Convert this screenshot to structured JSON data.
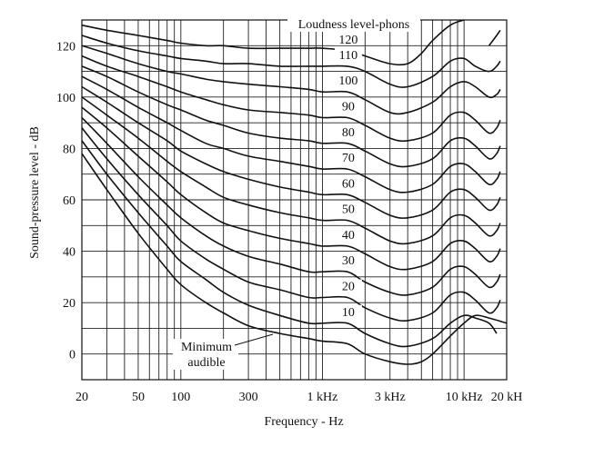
{
  "chart_data": {
    "type": "line",
    "title": "",
    "xlabel": "Frequency - Hz",
    "ylabel": "Sound-pressure level - dB",
    "x_scale": "log",
    "xlim": [
      20,
      20000
    ],
    "ylim": [
      -10,
      130
    ],
    "grid": true,
    "x_tick_labels": [
      {
        "value": 20,
        "label": "20"
      },
      {
        "value": 50,
        "label": "50"
      },
      {
        "value": 100,
        "label": "100"
      },
      {
        "value": 300,
        "label": "300"
      },
      {
        "value": 1000,
        "label": "1 kHz"
      },
      {
        "value": 3000,
        "label": "3 kHz"
      },
      {
        "value": 10000,
        "label": "10 kHz"
      },
      {
        "value": 20000,
        "label": "20 kH"
      }
    ],
    "y_tick_labels": [
      {
        "value": 0,
        "label": "0"
      },
      {
        "value": 20,
        "label": "20"
      },
      {
        "value": 40,
        "label": "40"
      },
      {
        "value": 60,
        "label": "60"
      },
      {
        "value": 80,
        "label": "80"
      },
      {
        "value": 100,
        "label": "100"
      },
      {
        "value": 120,
        "label": "120"
      }
    ],
    "legend_title": "Loudness level-phons",
    "annotation_minimum": "Minimum",
    "annotation_audible": "audible",
    "series": [
      {
        "label": "",
        "points": [
          [
            20,
            78
          ],
          [
            30,
            64
          ],
          [
            50,
            47
          ],
          [
            80,
            33
          ],
          [
            100,
            27
          ],
          [
            150,
            20
          ],
          [
            200,
            16
          ],
          [
            300,
            11
          ],
          [
            500,
            8
          ],
          [
            800,
            6
          ],
          [
            1000,
            5
          ],
          [
            1500,
            4
          ],
          [
            2000,
            0
          ],
          [
            3000,
            -3
          ],
          [
            4000,
            -4
          ],
          [
            5000,
            -3
          ],
          [
            6000,
            0
          ],
          [
            8000,
            7
          ],
          [
            10000,
            12
          ],
          [
            12000,
            15
          ],
          [
            15000,
            14
          ],
          [
            20000,
            12
          ]
        ]
      },
      {
        "label": "10",
        "points": [
          [
            20,
            83
          ],
          [
            30,
            70
          ],
          [
            50,
            55
          ],
          [
            80,
            42
          ],
          [
            100,
            36
          ],
          [
            150,
            29
          ],
          [
            200,
            24
          ],
          [
            300,
            19
          ],
          [
            500,
            15
          ],
          [
            800,
            12
          ],
          [
            1000,
            12
          ],
          [
            1500,
            12
          ],
          [
            2000,
            8
          ],
          [
            3000,
            4
          ],
          [
            4000,
            3
          ],
          [
            6000,
            6
          ],
          [
            8000,
            12
          ],
          [
            10000,
            15
          ],
          [
            12000,
            14
          ],
          [
            15000,
            12
          ],
          [
            17000,
            8
          ]
        ]
      },
      {
        "label": "20",
        "points": [
          [
            20,
            88
          ],
          [
            30,
            76
          ],
          [
            50,
            62
          ],
          [
            80,
            50
          ],
          [
            100,
            44
          ],
          [
            150,
            37
          ],
          [
            200,
            33
          ],
          [
            300,
            28
          ],
          [
            500,
            25
          ],
          [
            800,
            22
          ],
          [
            1000,
            22
          ],
          [
            1500,
            22
          ],
          [
            2000,
            18
          ],
          [
            3000,
            14
          ],
          [
            4000,
            13
          ],
          [
            6000,
            16
          ],
          [
            8000,
            23
          ],
          [
            10000,
            24
          ],
          [
            12000,
            21
          ],
          [
            15000,
            16
          ],
          [
            17000,
            18
          ],
          [
            18000,
            21
          ]
        ]
      },
      {
        "label": "30",
        "points": [
          [
            20,
            92
          ],
          [
            30,
            82
          ],
          [
            50,
            69
          ],
          [
            80,
            58
          ],
          [
            100,
            53
          ],
          [
            150,
            46
          ],
          [
            200,
            42
          ],
          [
            300,
            38
          ],
          [
            500,
            35
          ],
          [
            800,
            32
          ],
          [
            1000,
            32
          ],
          [
            1500,
            32
          ],
          [
            2000,
            28
          ],
          [
            3000,
            24
          ],
          [
            4000,
            23
          ],
          [
            6000,
            26
          ],
          [
            8000,
            33
          ],
          [
            10000,
            34
          ],
          [
            12000,
            31
          ],
          [
            15000,
            26
          ],
          [
            17000,
            28
          ],
          [
            18000,
            31
          ]
        ]
      },
      {
        "label": "40",
        "points": [
          [
            20,
            96
          ],
          [
            30,
            88
          ],
          [
            50,
            77
          ],
          [
            80,
            67
          ],
          [
            100,
            62
          ],
          [
            150,
            55
          ],
          [
            200,
            51
          ],
          [
            300,
            48
          ],
          [
            500,
            45
          ],
          [
            800,
            43
          ],
          [
            1000,
            42
          ],
          [
            1500,
            42
          ],
          [
            2000,
            39
          ],
          [
            3000,
            34
          ],
          [
            4000,
            33
          ],
          [
            6000,
            36
          ],
          [
            8000,
            43
          ],
          [
            10000,
            44
          ],
          [
            12000,
            41
          ],
          [
            15000,
            36
          ],
          [
            17000,
            38
          ],
          [
            18000,
            41
          ]
        ]
      },
      {
        "label": "50",
        "points": [
          [
            20,
            100
          ],
          [
            30,
            93
          ],
          [
            50,
            84
          ],
          [
            80,
            75
          ],
          [
            100,
            71
          ],
          [
            150,
            65
          ],
          [
            200,
            61
          ],
          [
            300,
            58
          ],
          [
            500,
            55
          ],
          [
            800,
            53
          ],
          [
            1000,
            52
          ],
          [
            1500,
            52
          ],
          [
            2000,
            49
          ],
          [
            3000,
            44
          ],
          [
            4000,
            43
          ],
          [
            6000,
            46
          ],
          [
            8000,
            53
          ],
          [
            10000,
            54
          ],
          [
            12000,
            51
          ],
          [
            15000,
            46
          ],
          [
            17000,
            48
          ],
          [
            18000,
            51
          ]
        ]
      },
      {
        "label": "60",
        "points": [
          [
            20,
            104
          ],
          [
            30,
            98
          ],
          [
            50,
            90
          ],
          [
            80,
            83
          ],
          [
            100,
            79
          ],
          [
            150,
            74
          ],
          [
            200,
            71
          ],
          [
            300,
            68
          ],
          [
            500,
            65
          ],
          [
            800,
            63
          ],
          [
            1000,
            62
          ],
          [
            1500,
            62
          ],
          [
            2000,
            59
          ],
          [
            3000,
            54
          ],
          [
            4000,
            53
          ],
          [
            6000,
            56
          ],
          [
            8000,
            63
          ],
          [
            10000,
            64
          ],
          [
            12000,
            61
          ],
          [
            15000,
            56
          ],
          [
            17000,
            58
          ],
          [
            18000,
            61
          ]
        ]
      },
      {
        "label": "70",
        "points": [
          [
            20,
            108
          ],
          [
            30,
            103
          ],
          [
            50,
            96
          ],
          [
            80,
            90
          ],
          [
            100,
            87
          ],
          [
            150,
            82
          ],
          [
            200,
            80
          ],
          [
            300,
            77
          ],
          [
            500,
            75
          ],
          [
            800,
            73
          ],
          [
            1000,
            72
          ],
          [
            1500,
            72
          ],
          [
            2000,
            69
          ],
          [
            3000,
            64
          ],
          [
            4000,
            63
          ],
          [
            6000,
            66
          ],
          [
            8000,
            73
          ],
          [
            10000,
            74
          ],
          [
            12000,
            71
          ],
          [
            15000,
            66
          ],
          [
            17000,
            68
          ],
          [
            18000,
            71
          ]
        ]
      },
      {
        "label": "80",
        "points": [
          [
            20,
            112
          ],
          [
            30,
            108
          ],
          [
            50,
            102
          ],
          [
            80,
            97
          ],
          [
            100,
            95
          ],
          [
            150,
            91
          ],
          [
            200,
            89
          ],
          [
            300,
            86
          ],
          [
            500,
            84
          ],
          [
            800,
            83
          ],
          [
            1000,
            82
          ],
          [
            1500,
            82
          ],
          [
            2000,
            79
          ],
          [
            3000,
            74
          ],
          [
            4000,
            73
          ],
          [
            6000,
            76
          ],
          [
            8000,
            83
          ],
          [
            10000,
            84
          ],
          [
            12000,
            81
          ],
          [
            15000,
            76
          ],
          [
            17000,
            78
          ],
          [
            18000,
            81
          ]
        ]
      },
      {
        "label": "90",
        "points": [
          [
            20,
            116
          ],
          [
            30,
            112
          ],
          [
            50,
            108
          ],
          [
            80,
            104
          ],
          [
            100,
            102
          ],
          [
            150,
            99
          ],
          [
            200,
            97
          ],
          [
            300,
            95
          ],
          [
            500,
            94
          ],
          [
            800,
            93
          ],
          [
            1000,
            92
          ],
          [
            1500,
            92
          ],
          [
            2000,
            89
          ],
          [
            3000,
            84
          ],
          [
            4000,
            83
          ],
          [
            6000,
            86
          ],
          [
            8000,
            93
          ],
          [
            10000,
            94
          ],
          [
            12000,
            91
          ],
          [
            15000,
            86
          ],
          [
            17000,
            88
          ],
          [
            18000,
            91
          ]
        ]
      },
      {
        "label": "100",
        "points": [
          [
            20,
            120
          ],
          [
            30,
            117
          ],
          [
            50,
            113
          ],
          [
            80,
            110
          ],
          [
            100,
            109
          ],
          [
            150,
            107
          ],
          [
            200,
            106
          ],
          [
            300,
            105
          ],
          [
            500,
            104
          ],
          [
            800,
            103
          ],
          [
            1000,
            102
          ],
          [
            1500,
            102
          ],
          [
            2000,
            99
          ],
          [
            3000,
            94
          ],
          [
            4000,
            94
          ],
          [
            6000,
            98
          ],
          [
            8000,
            104
          ],
          [
            10000,
            106
          ],
          [
            12000,
            104
          ],
          [
            15000,
            100
          ],
          [
            17000,
            101
          ],
          [
            18000,
            103
          ]
        ]
      },
      {
        "label": "110",
        "points": [
          [
            20,
            124
          ],
          [
            30,
            121
          ],
          [
            50,
            118
          ],
          [
            80,
            116
          ],
          [
            100,
            115
          ],
          [
            150,
            114
          ],
          [
            200,
            113
          ],
          [
            300,
            113
          ],
          [
            500,
            112
          ],
          [
            800,
            112
          ],
          [
            1000,
            112
          ],
          [
            1500,
            112
          ],
          [
            2000,
            110
          ],
          [
            3000,
            105
          ],
          [
            4000,
            104
          ],
          [
            6000,
            108
          ],
          [
            8000,
            114
          ],
          [
            10000,
            115
          ],
          [
            12000,
            112
          ],
          [
            15000,
            110
          ],
          [
            17000,
            112
          ],
          [
            18000,
            114
          ]
        ]
      },
      {
        "label": "120",
        "points": [
          [
            20,
            128
          ],
          [
            30,
            126
          ],
          [
            50,
            124
          ],
          [
            80,
            122
          ],
          [
            100,
            121
          ],
          [
            150,
            120
          ],
          [
            200,
            120
          ],
          [
            300,
            119
          ],
          [
            500,
            119
          ],
          [
            800,
            119
          ],
          [
            1000,
            119
          ],
          [
            1500,
            118
          ],
          [
            2000,
            116
          ],
          [
            3000,
            113
          ],
          [
            4000,
            113
          ],
          [
            5000,
            117
          ],
          [
            6000,
            122
          ],
          [
            8000,
            128
          ],
          [
            10000,
            130
          ]
        ]
      },
      {
        "label": "",
        "points": [
          [
            15000,
            120
          ],
          [
            17000,
            124
          ],
          [
            18000,
            126
          ]
        ]
      }
    ]
  }
}
